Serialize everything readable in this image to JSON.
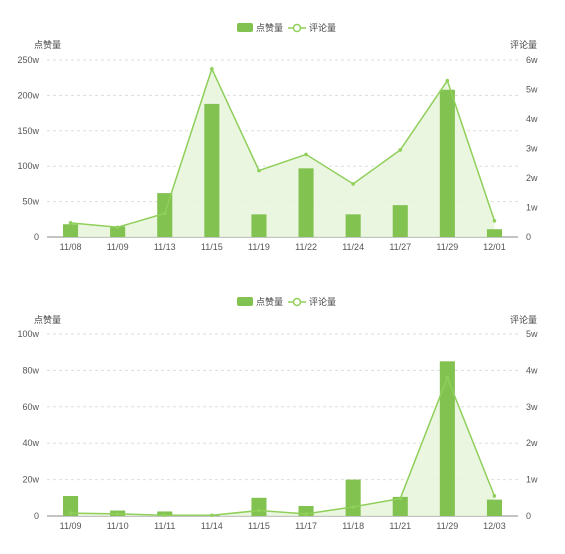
{
  "chart_data": [
    {
      "type": "bar",
      "legend": [
        "点赞量",
        "评论量"
      ],
      "legend_position": "top-center",
      "ylabel_left": "点赞量",
      "ylabel_right": "评论量",
      "left_ticks": [
        "0",
        "50w",
        "100w",
        "150w",
        "200w",
        "250w"
      ],
      "right_ticks": [
        "0",
        "1w",
        "2w",
        "3w",
        "4w",
        "5w",
        "6w"
      ],
      "ylim_left": [
        0,
        250
      ],
      "ylim_right": [
        0,
        6
      ],
      "categories": [
        "11/08",
        "11/09",
        "11/13",
        "11/15",
        "11/19",
        "11/22",
        "11/24",
        "11/27",
        "11/29",
        "12/01"
      ],
      "series": [
        {
          "name": "点赞量",
          "type": "bar",
          "axis": "left",
          "values": [
            18,
            15,
            62,
            188,
            32,
            97,
            32,
            45,
            208,
            11
          ]
        },
        {
          "name": "评论量",
          "type": "line",
          "axis": "right",
          "values": [
            0.48,
            0.33,
            0.8,
            5.7,
            2.25,
            2.8,
            1.8,
            2.95,
            5.3,
            0.55
          ]
        }
      ],
      "grid": true,
      "colors": {
        "bar": "#82c250",
        "line": "#8fcf5a",
        "area": "#e8f5dc",
        "grid": "#dddddd"
      }
    },
    {
      "type": "bar",
      "legend": [
        "点赞量",
        "评论量"
      ],
      "legend_position": "top-center",
      "ylabel_left": "点赞量",
      "ylabel_right": "评论量",
      "left_ticks": [
        "0",
        "20w",
        "40w",
        "60w",
        "80w",
        "100w"
      ],
      "right_ticks": [
        "0",
        "1w",
        "2w",
        "3w",
        "4w",
        "5w"
      ],
      "ylim_left": [
        0,
        100
      ],
      "ylim_right": [
        0,
        5
      ],
      "categories": [
        "11/09",
        "11/10",
        "11/11",
        "11/14",
        "11/15",
        "11/17",
        "11/18",
        "11/21",
        "11/29",
        "12/03"
      ],
      "series": [
        {
          "name": "点赞量",
          "type": "bar",
          "axis": "left",
          "values": [
            11,
            3,
            2.5,
            0.5,
            10,
            5.5,
            20,
            10.5,
            85,
            9
          ]
        },
        {
          "name": "评论量",
          "type": "line",
          "axis": "right",
          "values": [
            0.08,
            0.06,
            0.02,
            0.02,
            0.15,
            0.06,
            0.25,
            0.48,
            3.8,
            0.55
          ]
        }
      ],
      "grid": true,
      "colors": {
        "bar": "#82c250",
        "line": "#8fcf5a",
        "area": "#e8f5dc",
        "grid": "#dddddd"
      }
    }
  ]
}
